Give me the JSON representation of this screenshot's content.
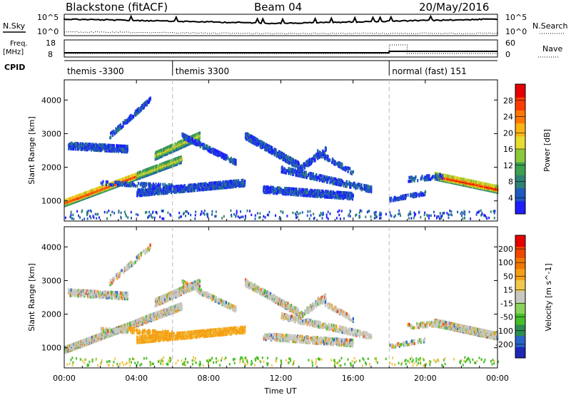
{
  "header": {
    "station": "Blackstone (fitACF)",
    "beam": "Beam 04",
    "date": "20/May/2016"
  },
  "summary": {
    "nsky_label": "N.Sky",
    "nsearch_label": "N.Search",
    "left_tick_top": "10^5",
    "left_tick_bottom": "10^0",
    "right_tick_top": "10^5",
    "right_tick_bottom": "10^0",
    "freq_label_1": "Freq.",
    "freq_label_2": "[MHz]",
    "freq_ticks": [
      "18",
      "8"
    ],
    "nave_label": "Nave",
    "nave_ticks": [
      "60",
      "0"
    ],
    "cpid_label": "CPID",
    "cpid_segments": [
      {
        "label": "themis -3300",
        "start_hour": 0
      },
      {
        "label": "themis 3300",
        "start_hour": 6
      },
      {
        "label": "normal (fast) 151",
        "start_hour": 18
      }
    ]
  },
  "chart_data": [
    {
      "type": "heatmap",
      "name": "power",
      "ylabel": "Slant Range [km]",
      "ylim": [
        400,
        4600
      ],
      "xlim": [
        0,
        24
      ],
      "yticks": [
        1000,
        2000,
        3000,
        4000
      ],
      "colorbar": {
        "label": "Power [dB]",
        "ticks": [
          "4",
          "8",
          "12",
          "16",
          "20",
          "24",
          "28"
        ],
        "colors": [
          "#1e1eff",
          "#1e5abe",
          "#2d8273",
          "#3ca050",
          "#8cc83c",
          "#e6dc32",
          "#fab414",
          "#ff7800",
          "#ff3c00",
          "#e60000"
        ]
      }
    },
    {
      "type": "heatmap",
      "name": "velocity",
      "ylabel": "Slant Range [km]",
      "ylim": [
        400,
        4600
      ],
      "xlim": [
        0,
        24
      ],
      "yticks": [
        1000,
        2000,
        3000,
        4000
      ],
      "colorbar": {
        "label": "Velocity [m s^-1]",
        "ticks": [
          "200",
          "100",
          "50",
          "15",
          "-15",
          "-50",
          "-100",
          "-200"
        ],
        "colors": [
          "#1e28b4",
          "#2864c8",
          "#2d8c50",
          "#46be28",
          "#8cd25a",
          "#c8c8c0",
          "#f0c850",
          "#f5a014",
          "#f07800",
          "#f04600",
          "#e60000"
        ]
      }
    }
  ],
  "xaxis": {
    "label": "Time UT",
    "ticks": [
      "00:00",
      "04:00",
      "08:00",
      "12:00",
      "16:00",
      "20:00",
      "00:00"
    ]
  }
}
